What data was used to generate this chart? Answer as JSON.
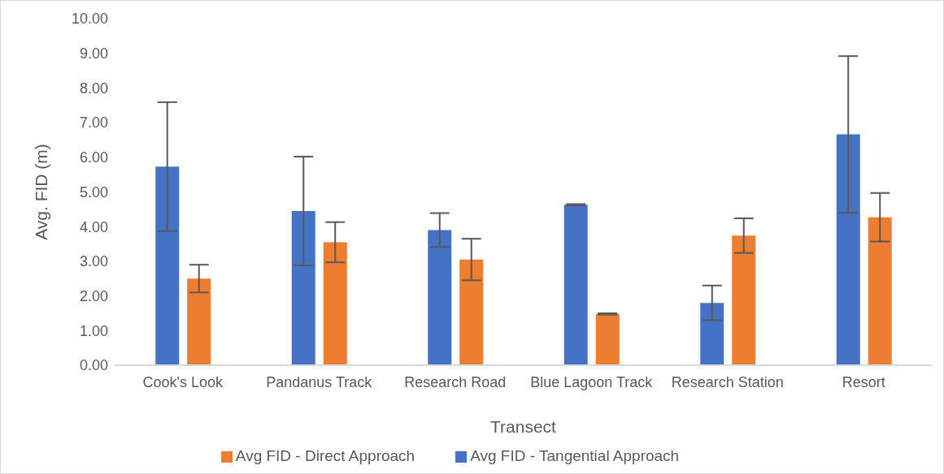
{
  "chart_data": {
    "type": "bar",
    "xlabel": "Transect",
    "ylabel": "Avg. FID (m)",
    "categories": [
      "Cook's Look",
      "Pandanus Track",
      "Research Road",
      "Blue Lagoon Track",
      "Research Station",
      "Resort"
    ],
    "series": [
      {
        "name": "Avg FID - Tangential Approach",
        "color": "#4472c4",
        "values": [
          5.73,
          4.45,
          3.9,
          4.63,
          1.8,
          6.66
        ],
        "errors": [
          1.86,
          1.57,
          0.49,
          0.02,
          0.5,
          2.26
        ]
      },
      {
        "name": "Avg FID - Direct Approach",
        "color": "#ed7d31",
        "values": [
          2.5,
          3.55,
          3.05,
          1.48,
          3.74,
          4.27
        ],
        "errors": [
          0.4,
          0.58,
          0.6,
          0.02,
          0.5,
          0.7
        ]
      }
    ],
    "ylim": [
      0,
      10
    ],
    "yticks": [
      {
        "value": 0,
        "label": "0.00"
      },
      {
        "value": 1,
        "label": "1.00"
      },
      {
        "value": 2,
        "label": "2.00"
      },
      {
        "value": 3,
        "label": "3.00"
      },
      {
        "value": 4,
        "label": "4.00"
      },
      {
        "value": 5,
        "label": "5.00"
      },
      {
        "value": 6,
        "label": "6.00"
      },
      {
        "value": 7,
        "label": "7.00"
      },
      {
        "value": 8,
        "label": "8.00"
      },
      {
        "value": 9,
        "label": "9.00"
      },
      {
        "value": 10,
        "label": "10.00"
      }
    ],
    "grid": false,
    "legend": "bottom"
  }
}
